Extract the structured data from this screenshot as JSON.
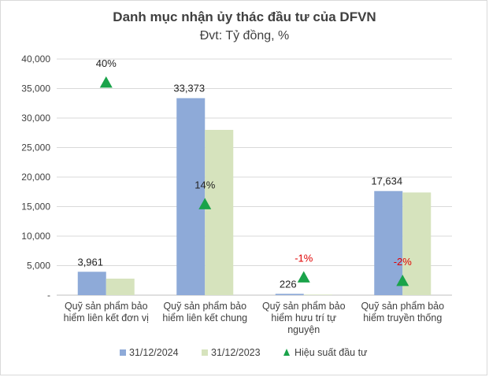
{
  "chart_data": {
    "type": "bar",
    "title": "Danh mục nhận ủy thác đầu tư của DFVN",
    "subtitle": "Đvt: Tỷ đồng, %",
    "categories": [
      [
        "Quỹ sản phẩm bảo",
        "hiểm liên kết đơn vị"
      ],
      [
        "Quỹ sản phẩm bảo",
        "hiểm liên kết chung"
      ],
      [
        "Quỹ sản phẩm bảo",
        "hiểm hưu trí tự",
        "nguyện"
      ],
      [
        "Quỹ sản phẩm bảo",
        "hiểm truyền thống"
      ]
    ],
    "ylim": [
      0,
      40000
    ],
    "yticks": [
      "-",
      "5,000",
      "10,000",
      "15,000",
      "20,000",
      "25,000",
      "30,000",
      "35,000",
      "40,000"
    ],
    "series": [
      {
        "name": "31/12/2024",
        "color": "#8eaad8",
        "values": [
          3961,
          33373,
          226,
          17634
        ]
      },
      {
        "name": "31/12/2023",
        "color": "#d6e3bd",
        "values": [
          2800,
          28000,
          100,
          17400
        ]
      }
    ],
    "bar_labels": [
      "3,961",
      "33,373",
      "226",
      "17,634"
    ],
    "performance": {
      "name": "Hiệu suất đầu tư",
      "color": "#1aa34a",
      "values": [
        40,
        14,
        -1,
        -2
      ],
      "labels": [
        "40%",
        "14%",
        "-1%",
        "-2%"
      ],
      "marker_y": [
        36000,
        15400,
        3000,
        2400
      ]
    },
    "grid": true,
    "legend_position": "bottom"
  }
}
